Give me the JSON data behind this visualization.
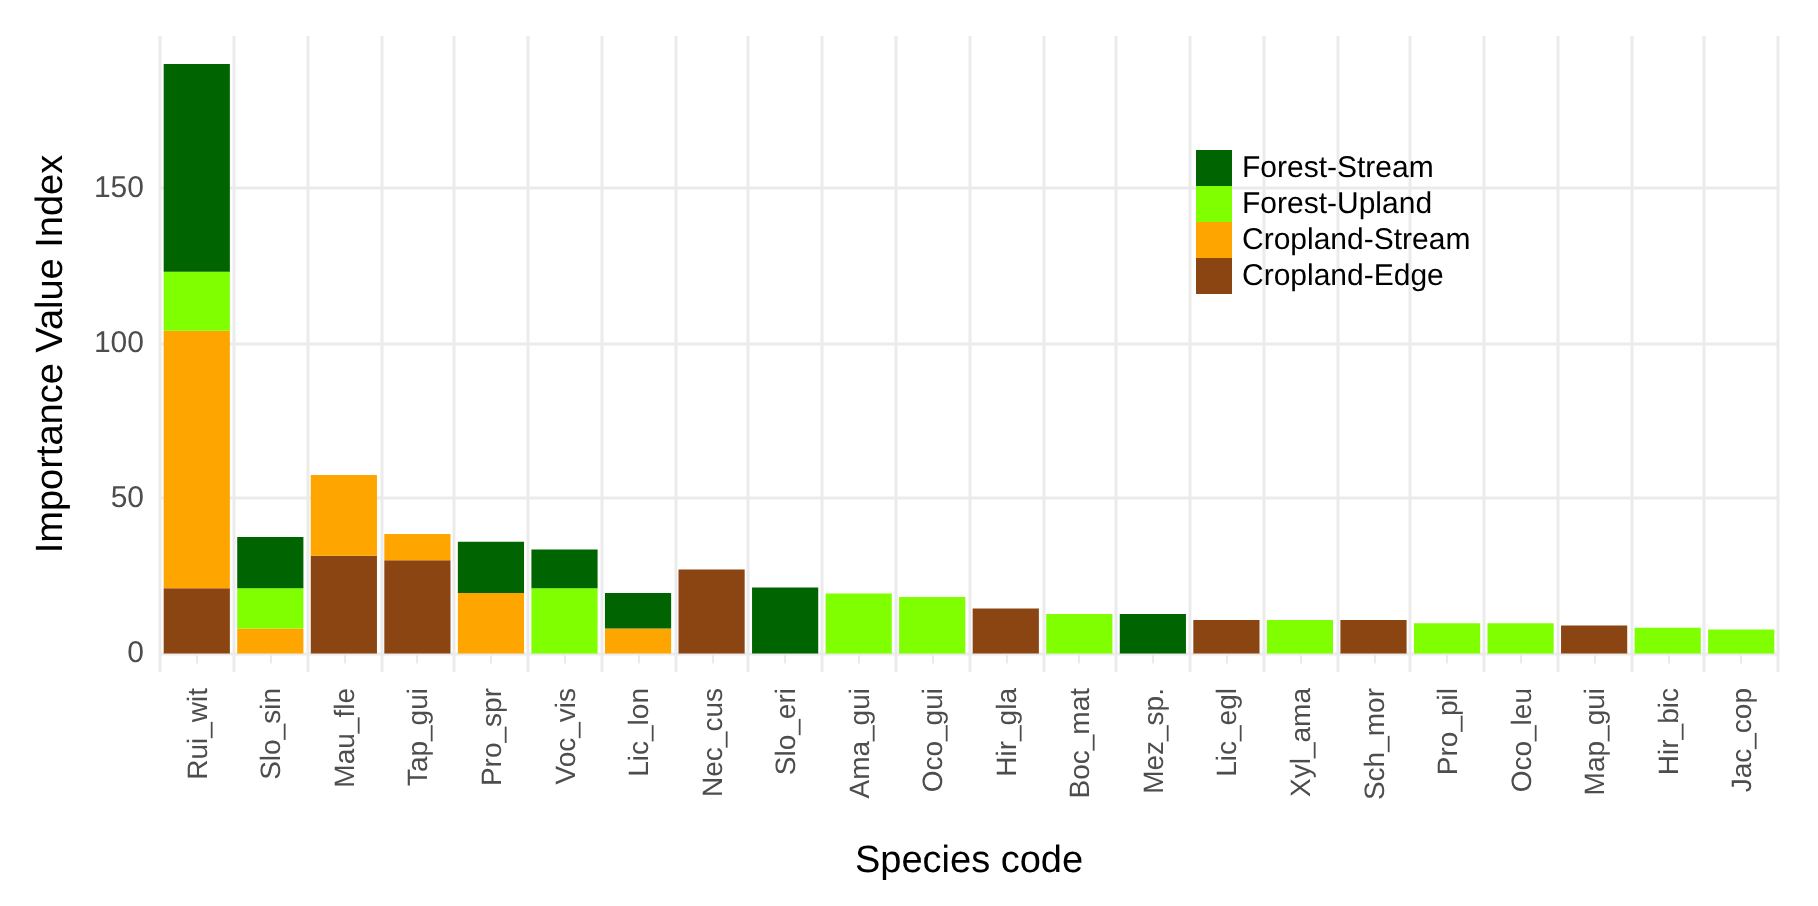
{
  "chart_data": {
    "type": "bar",
    "stacked": true,
    "xlabel": "Species code",
    "ylabel": "Importance Value Index",
    "categories": [
      "Rui_wit",
      "Slo_sin",
      "Mau_fle",
      "Tap_gui",
      "Pro_spr",
      "Voc_vis",
      "Lic_lon",
      "Nec_cus",
      "Slo_eri",
      "Ama_gui",
      "Oco_gui",
      "Hir_gla",
      "Boc_mat",
      "Mez_sp.",
      "Lic_egl",
      "Xyl_ama",
      "Sch_mor",
      "Pro_pil",
      "Oco_leu",
      "Map_gui",
      "Hir_bic",
      "Jac_cop"
    ],
    "series": [
      {
        "name": "Cropland-Edge",
        "color": "#8b4513",
        "values": [
          21,
          null,
          31.5,
          30,
          null,
          null,
          null,
          27,
          null,
          null,
          null,
          14.5,
          null,
          null,
          10.8,
          null,
          10.8,
          null,
          null,
          9,
          null,
          null
        ]
      },
      {
        "name": "Cropland-Stream",
        "color": "#ffa500",
        "values": [
          83,
          8,
          26,
          8.5,
          19.5,
          null,
          8,
          null,
          null,
          null,
          null,
          null,
          null,
          null,
          null,
          null,
          null,
          null,
          null,
          null,
          null,
          null
        ]
      },
      {
        "name": "Forest-Upland",
        "color": "#7fff00",
        "values": [
          19,
          13,
          null,
          null,
          null,
          21,
          null,
          null,
          null,
          19.3,
          18.2,
          null,
          12.7,
          null,
          null,
          10.8,
          null,
          9.7,
          9.7,
          null,
          8.3,
          7.7
        ]
      },
      {
        "name": "Forest-Stream",
        "color": "#006400",
        "values": [
          67,
          16.5,
          null,
          null,
          16.5,
          12.5,
          11.5,
          null,
          21.2,
          null,
          null,
          null,
          null,
          12.7,
          null,
          null,
          null,
          null,
          null,
          null,
          null,
          null
        ]
      }
    ],
    "ylim": [
      -6,
      199
    ],
    "yticks": [
      0,
      50,
      100,
      150
    ],
    "grid": true,
    "legend": "top right"
  }
}
